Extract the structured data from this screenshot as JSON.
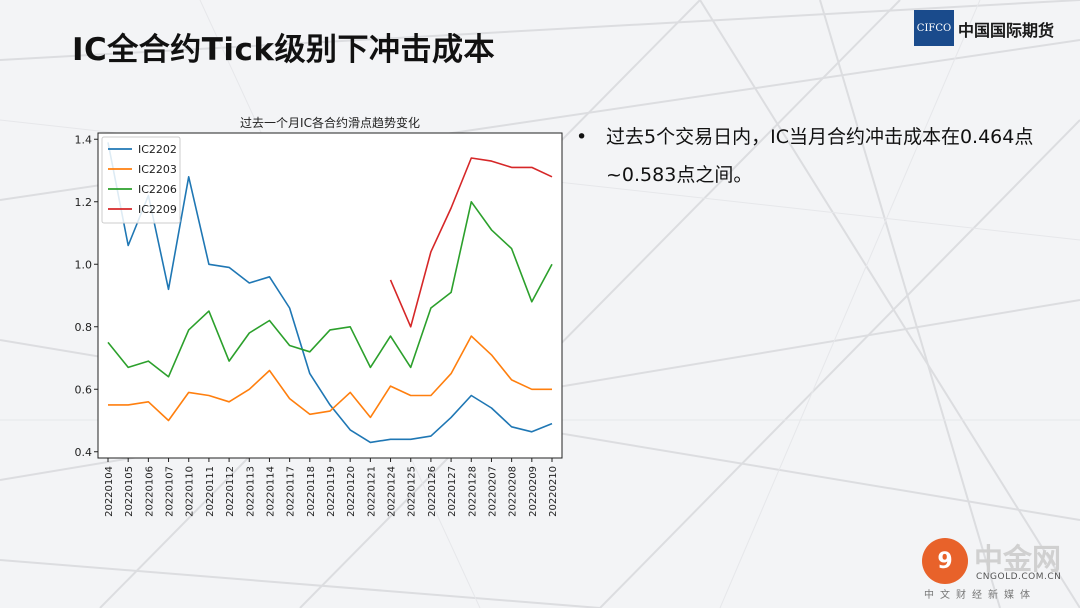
{
  "slide": {
    "title": "IC全合约Tick级别下冲击成本",
    "bullet_marker": "•",
    "bullet_text": "过去5个交易日内，IC当月合约冲击成本在0.464点~0.583点之间。"
  },
  "logo": {
    "mark_text": "CIFCO",
    "name": "中国国际期货",
    "color": "#1a4b8c"
  },
  "watermark": {
    "mark": "9",
    "name": "中金网",
    "url": "CNGOLD.COM.CN",
    "subtitle": "中文财经新媒体"
  },
  "chart_data": {
    "type": "line",
    "title": "过去一个月IC各合约滑点趋势变化",
    "xlabel": "",
    "ylabel": "",
    "ylim": [
      0.38,
      1.42
    ],
    "yticks": [
      "0.4",
      "0.6",
      "0.8",
      "1.0",
      "1.2",
      "1.4"
    ],
    "legend_position": "top-left",
    "grid": false,
    "categories": [
      "20220104",
      "20220105",
      "20220106",
      "20220107",
      "20220110",
      "20220111",
      "20220112",
      "20220113",
      "20220114",
      "20220117",
      "20220118",
      "20220119",
      "20220120",
      "20220121",
      "20220124",
      "20220125",
      "20220126",
      "20220127",
      "20220128",
      "20220207",
      "20220208",
      "20220209",
      "20220210"
    ],
    "series": [
      {
        "name": "IC2202",
        "color": "#1f77b4",
        "values": [
          1.39,
          1.06,
          1.22,
          0.92,
          1.28,
          1.0,
          0.99,
          0.94,
          0.96,
          0.86,
          0.65,
          0.55,
          0.47,
          0.43,
          0.44,
          0.44,
          0.45,
          0.51,
          0.58,
          0.54,
          0.48,
          0.464,
          0.49
        ]
      },
      {
        "name": "IC2203",
        "color": "#ff7f0e",
        "values": [
          0.55,
          0.55,
          0.56,
          0.5,
          0.59,
          0.58,
          0.56,
          0.6,
          0.66,
          0.57,
          0.52,
          0.53,
          0.59,
          0.51,
          0.61,
          0.58,
          0.58,
          0.65,
          0.77,
          0.71,
          0.63,
          0.6,
          0.6
        ]
      },
      {
        "name": "IC2206",
        "color": "#2ca02c",
        "values": [
          0.75,
          0.67,
          0.69,
          0.64,
          0.79,
          0.85,
          0.69,
          0.78,
          0.82,
          0.74,
          0.72,
          0.79,
          0.8,
          0.67,
          0.77,
          0.67,
          0.86,
          0.91,
          1.2,
          1.11,
          1.05,
          0.88,
          1.0
        ]
      },
      {
        "name": "IC2209",
        "color": "#d62728",
        "values": [
          null,
          null,
          null,
          null,
          null,
          null,
          null,
          null,
          null,
          null,
          null,
          null,
          null,
          null,
          0.95,
          0.8,
          1.04,
          1.18,
          1.34,
          1.33,
          1.31,
          1.31,
          1.28
        ]
      }
    ]
  }
}
